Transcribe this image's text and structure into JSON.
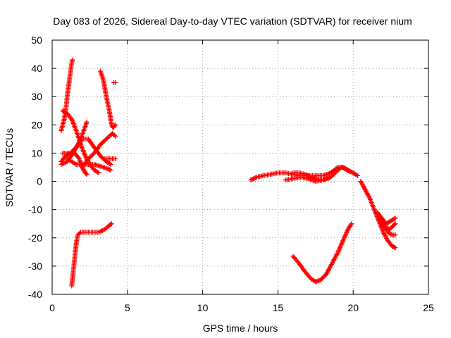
{
  "chart_data": {
    "type": "scatter",
    "title": "Day 083 of 2026, Sidereal Day-to-day VTEC variation (SDTVAR) for receiver nium",
    "xlabel": "GPS time / hours",
    "ylabel": "SDTVAR / TECUs",
    "xlim": [
      0,
      25
    ],
    "ylim": [
      -40,
      50
    ],
    "x_ticks": [
      0,
      5,
      10,
      15,
      20,
      25
    ],
    "y_ticks": [
      -40,
      -30,
      -20,
      -10,
      0,
      10,
      20,
      30,
      40,
      50
    ],
    "grid": true,
    "marker": "+",
    "color": "#ff0000",
    "series": [
      {
        "name": "s1",
        "points": [
          [
            0.6,
            18
          ],
          [
            0.8,
            22
          ],
          [
            0.9,
            25
          ],
          [
            1.0,
            30
          ],
          [
            1.1,
            34
          ],
          [
            1.2,
            38
          ],
          [
            1.3,
            42
          ],
          [
            1.35,
            43
          ]
        ]
      },
      {
        "name": "s2",
        "points": [
          [
            0.7,
            25
          ],
          [
            1.0,
            24
          ],
          [
            1.3,
            22
          ],
          [
            1.6,
            18
          ],
          [
            1.9,
            13
          ],
          [
            2.2,
            9
          ],
          [
            2.5,
            6
          ],
          [
            2.8,
            4
          ],
          [
            3.1,
            3
          ]
        ]
      },
      {
        "name": "s3",
        "points": [
          [
            0.6,
            7
          ],
          [
            0.9,
            9
          ],
          [
            1.2,
            10
          ],
          [
            1.5,
            10
          ],
          [
            1.8,
            8
          ],
          [
            2.0,
            5
          ],
          [
            2.2,
            3
          ],
          [
            2.3,
            2.5
          ]
        ]
      },
      {
        "name": "s4",
        "points": [
          [
            0.6,
            6
          ],
          [
            1.0,
            7
          ],
          [
            1.4,
            10
          ],
          [
            1.8,
            14
          ],
          [
            2.1,
            18
          ],
          [
            2.3,
            21
          ]
        ]
      },
      {
        "name": "s5",
        "points": [
          [
            0.7,
            10
          ],
          [
            1.2,
            10
          ],
          [
            1.6,
            12
          ],
          [
            2.0,
            15
          ],
          [
            2.4,
            15
          ],
          [
            2.8,
            12
          ],
          [
            3.2,
            9
          ],
          [
            3.6,
            7
          ],
          [
            3.9,
            6
          ]
        ]
      },
      {
        "name": "s6",
        "points": [
          [
            1.0,
            8
          ],
          [
            1.6,
            6
          ],
          [
            2.2,
            6
          ],
          [
            2.8,
            6
          ],
          [
            3.4,
            5
          ],
          [
            3.9,
            4
          ]
        ]
      },
      {
        "name": "s7",
        "points": [
          [
            2.0,
            5
          ],
          [
            2.4,
            8
          ],
          [
            2.8,
            10
          ],
          [
            3.2,
            13
          ],
          [
            3.6,
            15
          ],
          [
            4.0,
            17
          ],
          [
            4.2,
            16
          ]
        ]
      },
      {
        "name": "s8",
        "points": [
          [
            3.2,
            39
          ],
          [
            3.4,
            36
          ],
          [
            3.6,
            30
          ],
          [
            3.8,
            25
          ],
          [
            3.95,
            20
          ],
          [
            4.05,
            19
          ],
          [
            4.2,
            20
          ]
        ]
      },
      {
        "name": "s9",
        "points": [
          [
            3.5,
            8
          ],
          [
            3.8,
            8
          ],
          [
            4.0,
            8
          ],
          [
            4.2,
            8
          ]
        ]
      },
      {
        "name": "s10",
        "points": [
          [
            4.1,
            35
          ],
          [
            4.2,
            35
          ]
        ]
      },
      {
        "name": "s11",
        "points": [
          [
            1.3,
            -37
          ],
          [
            1.4,
            -32
          ],
          [
            1.5,
            -27
          ],
          [
            1.6,
            -22
          ],
          [
            1.7,
            -19
          ],
          [
            1.9,
            -18
          ],
          [
            2.3,
            -18
          ],
          [
            2.7,
            -18
          ],
          [
            3.1,
            -18
          ],
          [
            3.5,
            -17
          ],
          [
            3.8,
            -15.5
          ],
          [
            3.95,
            -15
          ]
        ]
      },
      {
        "name": "s12",
        "points": [
          [
            13.2,
            0.5
          ],
          [
            13.6,
            1.5
          ],
          [
            14.0,
            2
          ],
          [
            14.5,
            2.5
          ],
          [
            15.0,
            3
          ],
          [
            15.5,
            3
          ],
          [
            16.0,
            2.5
          ],
          [
            16.5,
            2
          ],
          [
            17.0,
            2
          ],
          [
            17.5,
            2
          ],
          [
            18.0,
            2
          ],
          [
            18.5,
            3
          ],
          [
            19.0,
            5
          ],
          [
            19.3,
            5
          ],
          [
            19.6,
            4
          ],
          [
            20.0,
            3
          ],
          [
            20.3,
            2
          ]
        ]
      },
      {
        "name": "s13",
        "points": [
          [
            15.5,
            0.5
          ],
          [
            16.0,
            1
          ],
          [
            16.5,
            1.5
          ],
          [
            17.0,
            1
          ],
          [
            17.5,
            0
          ],
          [
            18.0,
            0.5
          ],
          [
            18.5,
            1.5
          ],
          [
            19.0,
            4
          ],
          [
            19.2,
            5
          ],
          [
            19.5,
            4.5
          ],
          [
            19.8,
            3.5
          ]
        ]
      },
      {
        "name": "s14",
        "points": [
          [
            16.0,
            3
          ],
          [
            16.4,
            3
          ],
          [
            16.8,
            2.5
          ],
          [
            17.2,
            1.5
          ],
          [
            17.6,
            0.8
          ],
          [
            18.0,
            0.5
          ],
          [
            18.4,
            1.2
          ]
        ]
      },
      {
        "name": "s15",
        "points": [
          [
            20.5,
            0
          ],
          [
            20.8,
            -3
          ],
          [
            21.1,
            -6
          ],
          [
            21.4,
            -10
          ],
          [
            21.7,
            -14
          ],
          [
            22.0,
            -18
          ],
          [
            22.3,
            -21
          ],
          [
            22.6,
            -23
          ],
          [
            22.8,
            -23.5
          ]
        ]
      },
      {
        "name": "s16",
        "points": [
          [
            21.6,
            -11
          ],
          [
            21.9,
            -13
          ],
          [
            22.2,
            -15
          ],
          [
            22.5,
            -14
          ],
          [
            22.8,
            -13
          ]
        ]
      },
      {
        "name": "s17",
        "points": [
          [
            21.7,
            -12
          ],
          [
            22.0,
            -15
          ],
          [
            22.3,
            -18
          ],
          [
            22.6,
            -19
          ],
          [
            22.8,
            -19
          ]
        ]
      },
      {
        "name": "s18",
        "points": [
          [
            21.8,
            -13
          ],
          [
            22.1,
            -16
          ],
          [
            22.4,
            -17
          ],
          [
            22.8,
            -15
          ]
        ]
      },
      {
        "name": "s19",
        "points": [
          [
            16.0,
            -26.5
          ],
          [
            16.4,
            -29
          ],
          [
            16.8,
            -32
          ],
          [
            17.2,
            -34.5
          ],
          [
            17.5,
            -35.5
          ],
          [
            17.8,
            -35
          ],
          [
            18.2,
            -33
          ],
          [
            18.6,
            -29
          ],
          [
            19.0,
            -25
          ],
          [
            19.4,
            -20
          ],
          [
            19.7,
            -16.5
          ],
          [
            19.9,
            -15
          ]
        ]
      }
    ]
  }
}
